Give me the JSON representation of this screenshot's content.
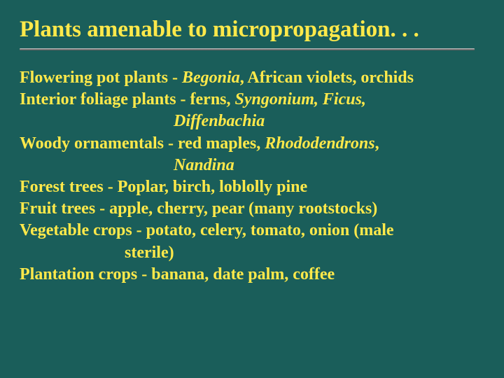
{
  "slide": {
    "background_color": "#1a5e5a",
    "text_color": "#ffe94a",
    "title_fontsize": 33,
    "body_fontsize": 24,
    "font_family": "Times New Roman",
    "rule_color_top": "#d6d6d6",
    "rule_color_bottom": "#4a4a4a",
    "title": "Plants amenable to micropropagation. . .",
    "lines": {
      "l1a": "Flowering pot plants - ",
      "l1b": "Begonia",
      "l1c": ", African violets, orchids",
      "l2a": "Interior foliage plants - ferns, ",
      "l2b": "Syngonium, Ficus,",
      "l3a": "Diffenbachia",
      "l4a": "Woody ornamentals - red maples, ",
      "l4b": "Rhododendrons",
      "l4c": ",",
      "l5a": "Nandina",
      "l6": "Forest trees - Poplar, birch, loblolly pine",
      "l7": "Fruit trees - apple, cherry, pear (many rootstocks)",
      "l8": "Vegetable crops - potato, celery, tomato, onion (male",
      "l9": "sterile)",
      "l10": "Plantation crops - banana, date palm, coffee"
    }
  }
}
